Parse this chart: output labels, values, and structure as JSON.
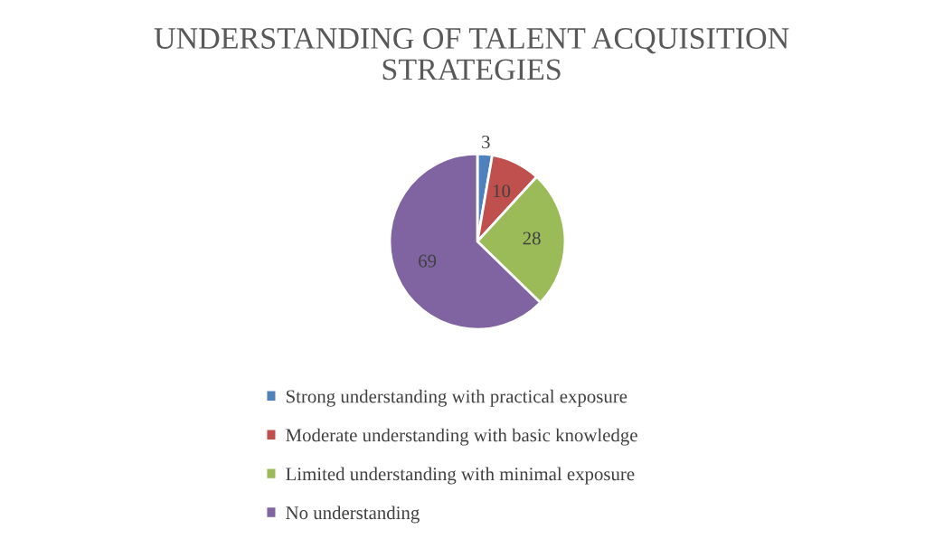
{
  "chart_data": {
    "type": "pie",
    "title": "UNDERSTANDING OF TALENT ACQUISITION STRATEGIES",
    "categories": [
      "Strong understanding with practical exposure",
      "Moderate understanding with basic knowledge",
      "Limited understanding with minimal exposure",
      "No understanding"
    ],
    "values": [
      3,
      10,
      28,
      69
    ],
    "colors": [
      "#4f81bd",
      "#c0504d",
      "#9bbb59",
      "#8064a2"
    ],
    "data_labels": true,
    "legend": "bottom"
  }
}
